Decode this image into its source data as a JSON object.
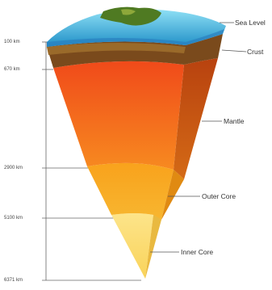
{
  "depths": [
    {
      "key": "d100",
      "label": "100 km"
    },
    {
      "key": "d670",
      "label": "670 km"
    },
    {
      "key": "d2900",
      "label": "2900 km"
    },
    {
      "key": "d5100",
      "label": "5100 km"
    },
    {
      "key": "d6371",
      "label": "6371 km"
    }
  ],
  "layers": [
    {
      "key": "sea",
      "label": "Sea Level"
    },
    {
      "key": "crust",
      "label": "Crust"
    },
    {
      "key": "mantle",
      "label": "Mantle"
    },
    {
      "key": "outer",
      "label": "Outer Core"
    },
    {
      "key": "inner",
      "label": "Inner Core"
    }
  ],
  "colors": {
    "ocean": "#3ea9d6",
    "land": "#4f7a22",
    "crust": "#7a4a1c",
    "mantle": "#f26a1b",
    "outer_core": "#f7a51e",
    "inner_core": "#fbe27a",
    "line": "#555555"
  }
}
